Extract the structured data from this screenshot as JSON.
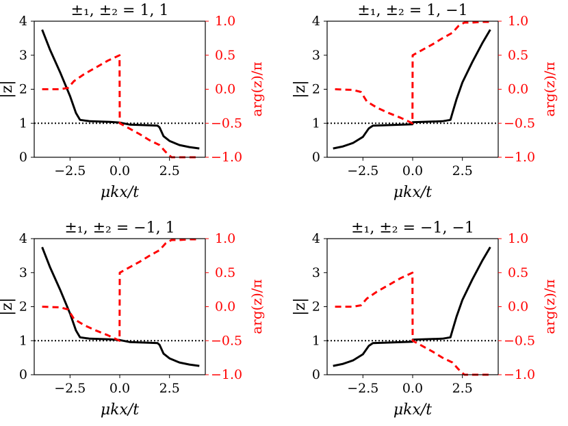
{
  "chart_data": [
    {
      "type": "line",
      "title": "±₁, ±₂ = 1, 1",
      "xlabel": "μkx/t",
      "ylabel": "|z|",
      "ylabel_right": "arg(z)/π",
      "xlim": [
        -4.3,
        4.3
      ],
      "ylim": [
        0,
        4
      ],
      "ylim_right": [
        -1.0,
        1.0
      ],
      "xticks": [
        "−2.5",
        "0.0",
        "2.5"
      ],
      "yticks": [
        "0",
        "1",
        "2",
        "3",
        "4"
      ],
      "yticks_right": [
        "−1.0",
        "−0.5",
        "0.0",
        "0.5",
        "1.0"
      ],
      "reference_line": {
        "y": 1,
        "style": "dotted",
        "color": "#000000"
      },
      "series": [
        {
          "axis": "left",
          "color": "#000000",
          "style": "solid",
          "x": [
            -3.9,
            -3.5,
            -3.0,
            -2.5,
            -2.2,
            -2.0,
            -1.5,
            -1.0,
            -0.5,
            0.0,
            0.5,
            1.0,
            1.5,
            1.9,
            2.0,
            2.2,
            2.5,
            3.0,
            3.5,
            4.0
          ],
          "y": [
            3.75,
            3.15,
            2.5,
            1.8,
            1.3,
            1.1,
            1.06,
            1.05,
            1.04,
            1.02,
            0.96,
            0.95,
            0.94,
            0.93,
            0.88,
            0.62,
            0.48,
            0.36,
            0.3,
            0.26
          ]
        },
        {
          "axis": "right",
          "color": "#ff0000",
          "style": "dashed",
          "x": [
            -3.9,
            -3.0,
            -2.6,
            -2.3,
            -1.8,
            -1.2,
            -0.6,
            -0.01,
            0.0,
            0.5,
            1.0,
            1.5,
            2.0,
            2.3,
            2.6,
            3.0,
            3.5,
            4.0
          ],
          "y": [
            0.0,
            0.0,
            0.02,
            0.12,
            0.22,
            0.32,
            0.42,
            0.5,
            -0.5,
            -0.58,
            -0.66,
            -0.75,
            -0.82,
            -0.92,
            -1.0,
            -1.0,
            -1.0,
            -1.0
          ]
        }
      ]
    },
    {
      "type": "line",
      "title": "±₁, ±₂ = 1, −1",
      "xlabel": "μkx/t",
      "ylabel": "|z|",
      "ylabel_right": "arg(z)/π",
      "xlim": [
        -4.3,
        4.3
      ],
      "ylim": [
        0,
        4
      ],
      "ylim_right": [
        -1.0,
        1.0
      ],
      "xticks": [
        "−2.5",
        "0.0",
        "2.5"
      ],
      "yticks": [
        "0",
        "1",
        "2",
        "3",
        "4"
      ],
      "yticks_right": [
        "−1.0",
        "−0.5",
        "0.0",
        "0.5",
        "1.0"
      ],
      "reference_line": {
        "y": 1,
        "style": "dotted",
        "color": "#000000"
      },
      "series": [
        {
          "axis": "left",
          "color": "#000000",
          "style": "solid",
          "x": [
            -4.0,
            -3.5,
            -3.0,
            -2.5,
            -2.2,
            -2.0,
            -1.5,
            -1.0,
            -0.5,
            -0.01,
            0.0,
            0.5,
            1.0,
            1.5,
            1.9,
            2.0,
            2.2,
            2.5,
            3.0,
            3.5,
            3.9
          ],
          "y": [
            0.26,
            0.32,
            0.42,
            0.6,
            0.85,
            0.93,
            0.94,
            0.95,
            0.96,
            0.97,
            1.03,
            1.04,
            1.05,
            1.06,
            1.1,
            1.3,
            1.7,
            2.2,
            2.8,
            3.35,
            3.75
          ]
        },
        {
          "axis": "right",
          "color": "#ff0000",
          "style": "dashed",
          "x": [
            -3.9,
            -3.0,
            -2.6,
            -2.3,
            -1.8,
            -1.2,
            -0.6,
            -0.01,
            0.0,
            0.5,
            1.0,
            1.5,
            2.0,
            2.3,
            2.6,
            3.0,
            3.5,
            4.0
          ],
          "y": [
            0.0,
            -0.01,
            -0.04,
            -0.18,
            -0.27,
            -0.35,
            -0.42,
            -0.5,
            0.5,
            0.58,
            0.66,
            0.75,
            0.83,
            0.93,
            0.98,
            0.98,
            0.99,
            0.99
          ]
        }
      ]
    },
    {
      "type": "line",
      "title": "±₁, ±₂ = −1, 1",
      "xlabel": "μkx/t",
      "ylabel": "|z|",
      "ylabel_right": "arg(z)/π",
      "xlim": [
        -4.3,
        4.3
      ],
      "ylim": [
        0,
        4
      ],
      "ylim_right": [
        -1.0,
        1.0
      ],
      "xticks": [
        "−2.5",
        "0.0",
        "2.5"
      ],
      "yticks": [
        "0",
        "1",
        "2",
        "3",
        "4"
      ],
      "yticks_right": [
        "−1.0",
        "−0.5",
        "0.0",
        "0.5",
        "1.0"
      ],
      "reference_line": {
        "y": 1,
        "style": "dotted",
        "color": "#000000"
      },
      "series": [
        {
          "axis": "left",
          "color": "#000000",
          "style": "solid",
          "x": [
            -3.9,
            -3.5,
            -3.0,
            -2.5,
            -2.2,
            -2.0,
            -1.5,
            -1.0,
            -0.5,
            0.0,
            0.5,
            1.0,
            1.5,
            1.9,
            2.0,
            2.2,
            2.5,
            3.0,
            3.5,
            4.0
          ],
          "y": [
            3.75,
            3.15,
            2.5,
            1.8,
            1.3,
            1.1,
            1.06,
            1.05,
            1.04,
            1.02,
            0.96,
            0.95,
            0.94,
            0.93,
            0.88,
            0.62,
            0.48,
            0.36,
            0.3,
            0.26
          ]
        },
        {
          "axis": "right",
          "color": "#ff0000",
          "style": "dashed",
          "x": [
            -3.9,
            -3.0,
            -2.6,
            -2.3,
            -1.8,
            -1.2,
            -0.6,
            -0.01,
            0.0,
            0.5,
            1.0,
            1.5,
            2.0,
            2.3,
            2.6,
            3.0,
            3.5,
            4.0
          ],
          "y": [
            0.0,
            -0.01,
            -0.04,
            -0.18,
            -0.27,
            -0.35,
            -0.42,
            -0.5,
            0.5,
            0.58,
            0.66,
            0.75,
            0.83,
            0.93,
            0.98,
            0.98,
            0.99,
            0.99
          ]
        }
      ]
    },
    {
      "type": "line",
      "title": "±₁, ±₂ = −1, −1",
      "xlabel": "μkx/t",
      "ylabel": "|z|",
      "ylabel_right": "arg(z)/π",
      "xlim": [
        -4.3,
        4.3
      ],
      "ylim": [
        0,
        4
      ],
      "ylim_right": [
        -1.0,
        1.0
      ],
      "xticks": [
        "−2.5",
        "0.0",
        "2.5"
      ],
      "yticks": [
        "0",
        "1",
        "2",
        "3",
        "4"
      ],
      "yticks_right": [
        "−1.0",
        "−0.5",
        "0.0",
        "0.5",
        "1.0"
      ],
      "reference_line": {
        "y": 1,
        "style": "dotted",
        "color": "#000000"
      },
      "series": [
        {
          "axis": "left",
          "color": "#000000",
          "style": "solid",
          "x": [
            -4.0,
            -3.5,
            -3.0,
            -2.5,
            -2.2,
            -2.0,
            -1.5,
            -1.0,
            -0.5,
            -0.01,
            0.0,
            0.5,
            1.0,
            1.5,
            1.9,
            2.0,
            2.2,
            2.5,
            3.0,
            3.5,
            3.9
          ],
          "y": [
            0.26,
            0.32,
            0.42,
            0.6,
            0.85,
            0.93,
            0.94,
            0.95,
            0.96,
            0.97,
            1.03,
            1.04,
            1.05,
            1.06,
            1.1,
            1.3,
            1.7,
            2.2,
            2.8,
            3.35,
            3.75
          ]
        },
        {
          "axis": "right",
          "color": "#ff0000",
          "style": "dashed",
          "x": [
            -3.9,
            -3.0,
            -2.6,
            -2.3,
            -1.8,
            -1.2,
            -0.6,
            -0.01,
            0.0,
            0.5,
            1.0,
            1.5,
            2.0,
            2.3,
            2.6,
            3.0,
            3.5,
            4.0
          ],
          "y": [
            0.0,
            0.0,
            0.02,
            0.12,
            0.22,
            0.32,
            0.42,
            0.5,
            -0.5,
            -0.58,
            -0.66,
            -0.75,
            -0.82,
            -0.92,
            -1.0,
            -1.0,
            -1.0,
            -1.0
          ]
        }
      ]
    }
  ]
}
